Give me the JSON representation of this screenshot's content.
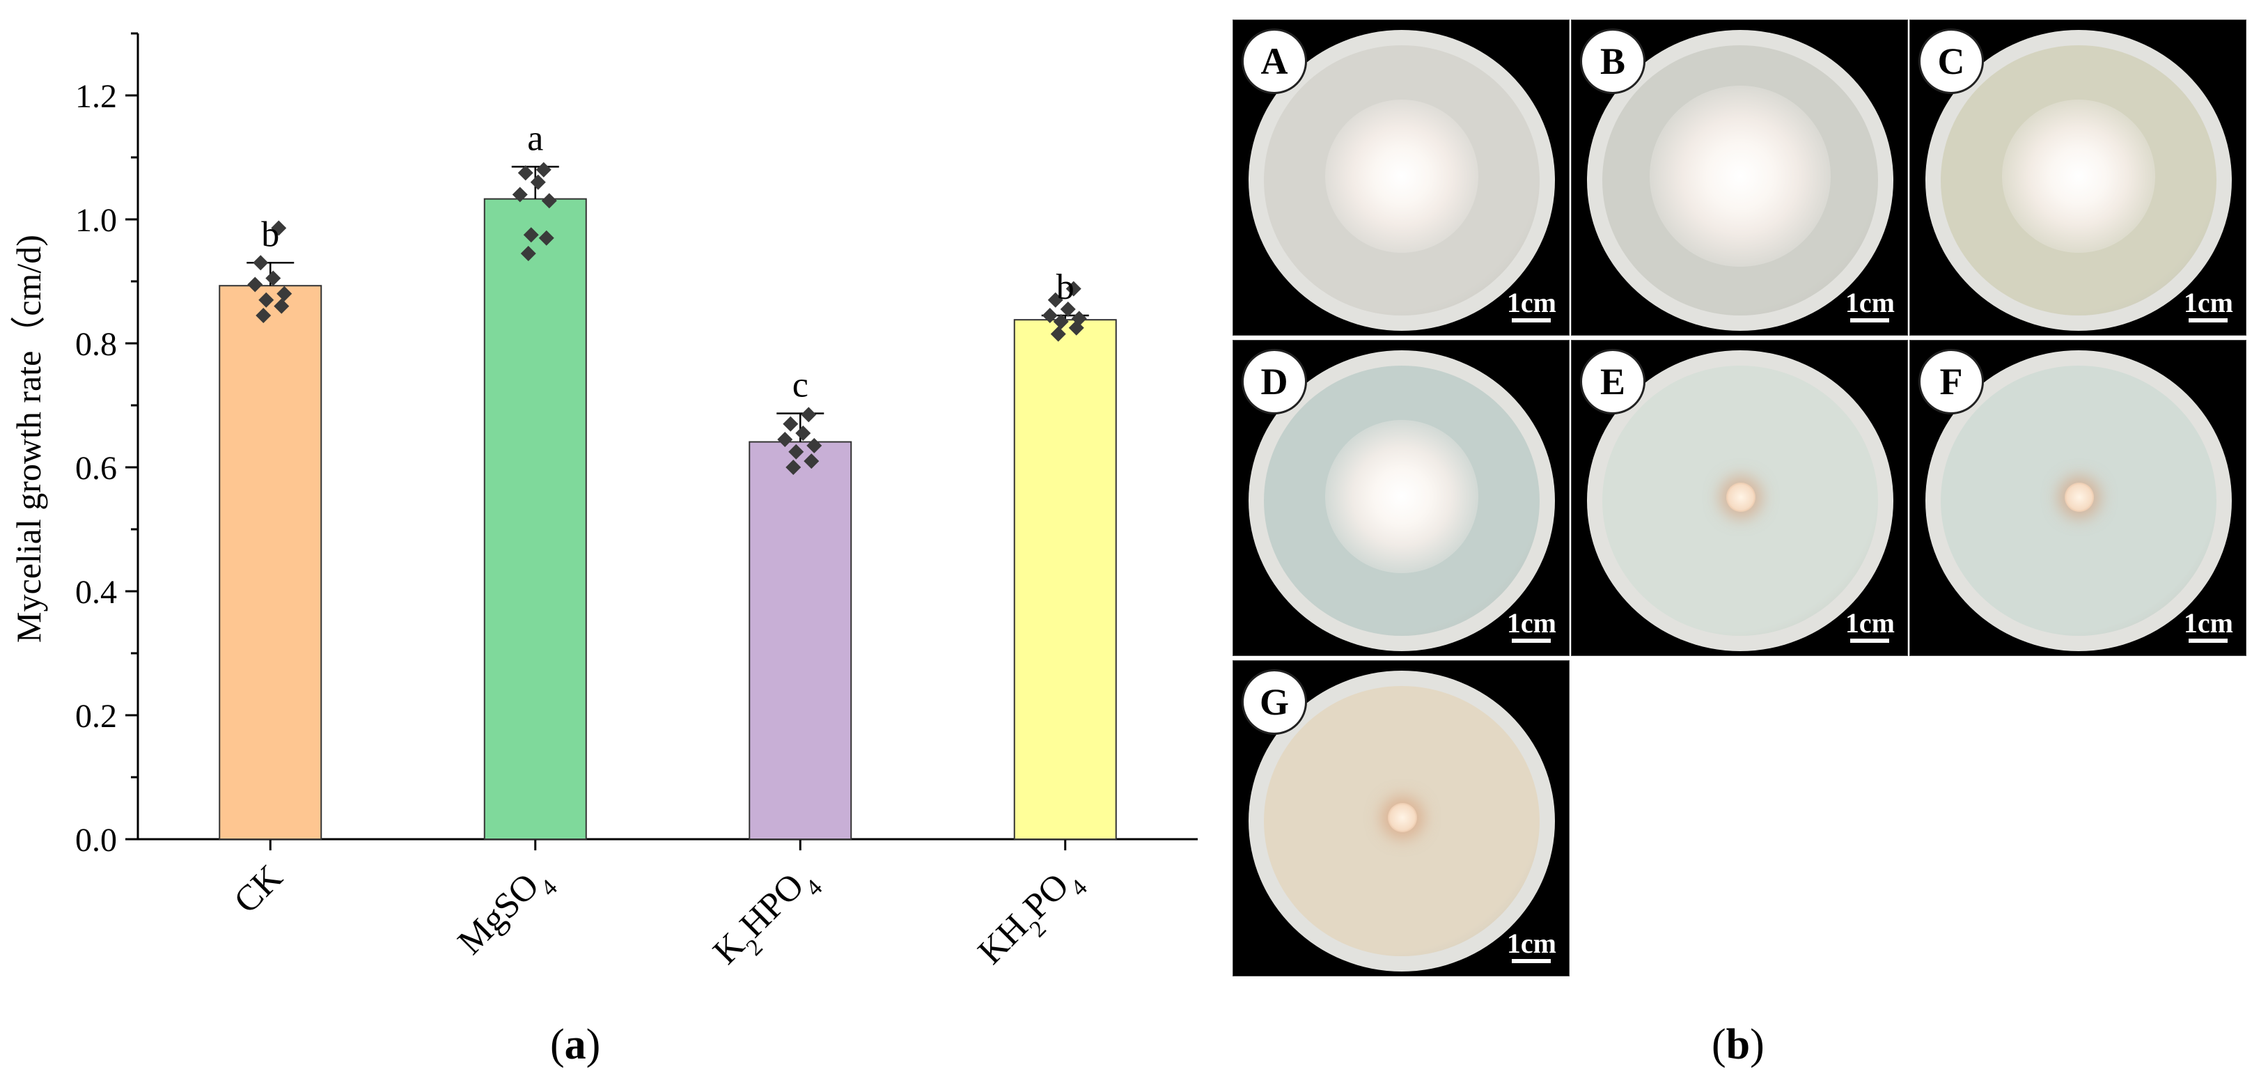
{
  "chart_data": {
    "type": "bar",
    "ylabel": "Mycelial growth rate（cm/d)",
    "xlabel": "",
    "ylim": [
      0,
      1.3
    ],
    "yticks": [
      "0.0",
      "0.2",
      "0.4",
      "0.6",
      "0.8",
      "1.0",
      "1.2"
    ],
    "grid": false,
    "categories": [
      {
        "main": "CK",
        "parts": [
          [
            "CK",
            ""
          ]
        ]
      },
      {
        "main": "MgSO4",
        "parts": [
          [
            "MgSO",
            ""
          ],
          [
            "4",
            "sub"
          ]
        ]
      },
      {
        "main": "K2HPO4",
        "parts": [
          [
            "K",
            ""
          ],
          [
            "2",
            "sub"
          ],
          [
            "HPO",
            ""
          ],
          [
            "4",
            "sub"
          ]
        ]
      },
      {
        "main": "KH2PO4",
        "parts": [
          [
            "KH",
            ""
          ],
          [
            "2",
            "sub"
          ],
          [
            "PO",
            ""
          ],
          [
            "4",
            "sub"
          ]
        ]
      }
    ],
    "values": [
      0.893,
      1.033,
      0.641,
      0.838
    ],
    "errors": [
      0.037,
      0.052,
      0.046,
      0.007
    ],
    "colors": [
      "#FEC691",
      "#7FD99B",
      "#C8AFD6",
      "#FFFF99"
    ],
    "significance": [
      "b",
      "a",
      "c",
      "b"
    ],
    "points": [
      [
        0.986,
        0.93,
        0.905,
        0.895,
        0.88,
        0.87,
        0.86,
        0.845
      ],
      [
        1.08,
        1.075,
        1.06,
        1.04,
        1.03,
        0.975,
        0.97,
        0.945
      ],
      [
        0.685,
        0.67,
        0.655,
        0.645,
        0.635,
        0.625,
        0.61,
        0.6
      ],
      [
        0.888,
        0.87,
        0.855,
        0.845,
        0.84,
        0.835,
        0.825,
        0.815
      ]
    ]
  },
  "panel_a_label": "a",
  "panel_b_label": "b",
  "plates": [
    {
      "id": "A",
      "scale": "1cm",
      "growth": "mycelium",
      "medium": "#d6d5cf"
    },
    {
      "id": "B",
      "scale": "1cm",
      "growth": "mycelium",
      "medium": "#cfd0c9"
    },
    {
      "id": "C",
      "scale": "1cm",
      "growth": "mycelium",
      "medium": "#d4d3bf"
    },
    {
      "id": "D",
      "scale": "1cm",
      "growth": "mycelium",
      "medium": "#c3d0cc"
    },
    {
      "id": "E",
      "scale": "1cm",
      "growth": "plug",
      "medium": "#d7dfd8"
    },
    {
      "id": "F",
      "scale": "1cm",
      "growth": "plug",
      "medium": "#d2dcd6"
    },
    {
      "id": "G",
      "scale": "1cm",
      "growth": "plug",
      "medium": "#e3d8c4"
    }
  ]
}
